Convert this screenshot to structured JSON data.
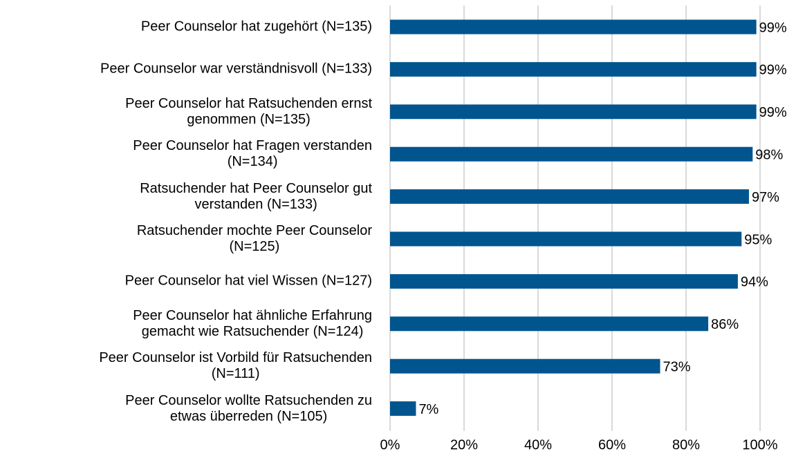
{
  "chart_data": {
    "type": "bar",
    "orientation": "horizontal",
    "categories": [
      "Peer Counselor hat zugehört (N=135)",
      "Peer Counselor war verständnisvoll (N=133)",
      "Peer Counselor hat Ratsuchenden ernst\ngenommen (N=135)",
      "Peer Counselor hat Fragen verstanden\n(N=134)",
      "Ratsuchender hat Peer Counselor gut\nverstanden (N=133)",
      "Ratsuchender mochte Peer Counselor\n(N=125)",
      "Peer Counselor hat viel Wissen (N=127)",
      "Peer Counselor hat ähnliche Erfahrung\ngemacht wie Ratsuchender (N=124)",
      "Peer Counselor ist Vorbild für Ratsuchenden\n(N=111)",
      "Peer Counselor wollte Ratsuchenden zu\netwas überreden (N=105)"
    ],
    "values": [
      99,
      99,
      99,
      98,
      97,
      95,
      94,
      86,
      73,
      7
    ],
    "value_labels": [
      "99%",
      "99%",
      "99%",
      "98%",
      "97%",
      "95%",
      "94%",
      "86%",
      "73%",
      "7%"
    ],
    "color": "#00558f",
    "xlim": [
      0,
      100
    ],
    "xticks": [
      {
        "value": 0,
        "label": "0%"
      },
      {
        "value": 20,
        "label": "20%"
      },
      {
        "value": 40,
        "label": "40%"
      },
      {
        "value": 60,
        "label": "60%"
      },
      {
        "value": 80,
        "label": "80%"
      },
      {
        "value": 100,
        "label": "100%"
      }
    ],
    "grid": true
  }
}
